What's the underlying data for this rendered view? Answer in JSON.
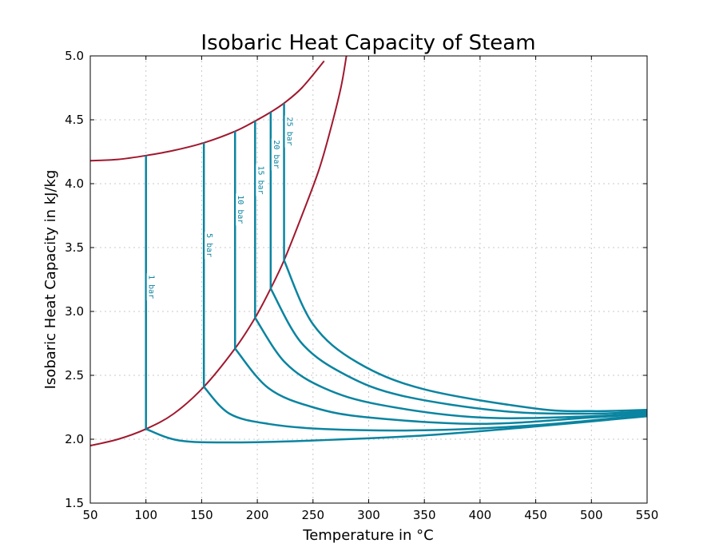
{
  "chart_data": {
    "type": "line",
    "title": "Isobaric Heat Capacity of Steam",
    "xlabel": "Temperature in °C",
    "ylabel": "Isobaric Heat Capacity in kJ/kg",
    "xlim": [
      50,
      550
    ],
    "ylim": [
      1.5,
      5.0
    ],
    "xticks": [
      50,
      100,
      150,
      200,
      250,
      300,
      350,
      400,
      450,
      500,
      550
    ],
    "yticks": [
      1.5,
      2.0,
      2.5,
      3.0,
      3.5,
      4.0,
      4.5,
      5.0
    ],
    "grid": true,
    "colors": {
      "isobar": "#0a84a0",
      "saturation": "#a0182e"
    },
    "saturated_liquid": {
      "x": [
        50,
        75,
        100,
        125,
        152,
        180,
        198,
        212,
        224,
        240,
        260
      ],
      "y": [
        4.18,
        4.19,
        4.22,
        4.26,
        4.32,
        4.41,
        4.49,
        4.56,
        4.63,
        4.75,
        4.96
      ]
    },
    "saturated_vapor": {
      "x": [
        50,
        75,
        100,
        125,
        152,
        180,
        198,
        212,
        224,
        240,
        255,
        265,
        275,
        280
      ],
      "y": [
        1.95,
        2.0,
        2.08,
        2.2,
        2.41,
        2.71,
        2.95,
        3.18,
        3.4,
        3.75,
        4.1,
        4.4,
        4.75,
        5.0
      ]
    },
    "series": [
      {
        "name": "1 bar",
        "label": "1 bar",
        "t_sat": 100,
        "x": [
          100,
          100,
          130,
          180,
          250,
          350,
          450,
          550
        ],
        "y": [
          4.22,
          2.08,
          1.99,
          1.975,
          1.99,
          2.03,
          2.1,
          2.18
        ]
      },
      {
        "name": "5 bar",
        "label": "5 bar",
        "t_sat": 152,
        "x": [
          152,
          152,
          175,
          210,
          260,
          350,
          450,
          550
        ],
        "y": [
          4.32,
          2.41,
          2.2,
          2.12,
          2.08,
          2.07,
          2.11,
          2.19
        ]
      },
      {
        "name": "10 bar",
        "label": "10 bar",
        "t_sat": 180,
        "x": [
          180,
          180,
          210,
          250,
          300,
          400,
          500,
          550
        ],
        "y": [
          4.41,
          2.71,
          2.4,
          2.25,
          2.17,
          2.12,
          2.17,
          2.2
        ]
      },
      {
        "name": "15 bar",
        "label": "15 bar",
        "t_sat": 198,
        "x": [
          198,
          198,
          225,
          260,
          310,
          400,
          500,
          550
        ],
        "y": [
          4.49,
          2.95,
          2.6,
          2.4,
          2.27,
          2.17,
          2.18,
          2.21
        ]
      },
      {
        "name": "20 bar",
        "label": "20 bar",
        "t_sat": 212,
        "x": [
          212,
          212,
          240,
          280,
          330,
          420,
          500,
          550
        ],
        "y": [
          4.56,
          3.18,
          2.75,
          2.5,
          2.34,
          2.22,
          2.2,
          2.22
        ]
      },
      {
        "name": "25 bar",
        "label": "25 bar",
        "t_sat": 224,
        "x": [
          224,
          224,
          250,
          290,
          350,
          450,
          500,
          550
        ],
        "y": [
          4.63,
          3.4,
          2.9,
          2.6,
          2.39,
          2.24,
          2.22,
          2.23
        ]
      }
    ]
  }
}
